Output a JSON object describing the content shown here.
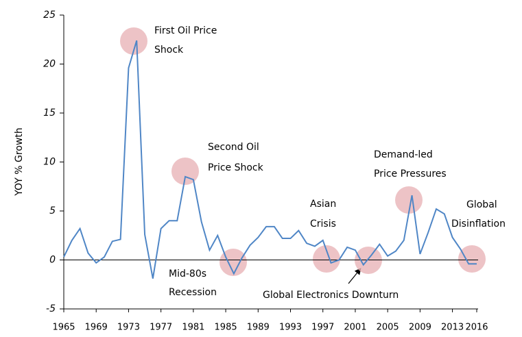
{
  "chart_data": {
    "type": "line",
    "y_label": "YOY % Growth",
    "x": [
      1965,
      1966,
      1967,
      1968,
      1969,
      1970,
      1971,
      1972,
      1973,
      1974,
      1975,
      1976,
      1977,
      1978,
      1979,
      1980,
      1981,
      1982,
      1983,
      1984,
      1985,
      1986,
      1987,
      1988,
      1989,
      1990,
      1991,
      1992,
      1993,
      1994,
      1995,
      1996,
      1997,
      1998,
      1999,
      2000,
      2001,
      2002,
      2003,
      2004,
      2005,
      2006,
      2007,
      2008,
      2009,
      2010,
      2011,
      2012,
      2013,
      2014,
      2015,
      2016
    ],
    "series": [
      {
        "color": "#4f86c6",
        "values": [
          0.3,
          2.0,
          3.2,
          0.7,
          -0.3,
          0.3,
          1.9,
          2.1,
          19.6,
          22.4,
          2.6,
          -1.9,
          3.2,
          4.0,
          4.0,
          8.5,
          8.2,
          3.9,
          1.0,
          2.5,
          0.3,
          -1.4,
          0.2,
          1.5,
          2.3,
          3.4,
          3.4,
          2.2,
          2.2,
          3.0,
          1.7,
          1.4,
          2.0,
          -0.3,
          0.0,
          1.3,
          1.0,
          -0.5,
          0.5,
          1.6,
          0.4,
          0.9,
          2.0,
          6.6,
          0.6,
          2.8,
          5.2,
          4.7,
          2.3,
          1.1,
          -0.4,
          -0.4
        ]
      }
    ],
    "xlim": [
      1965,
      2016
    ],
    "xticks": [
      1965,
      1969,
      1973,
      1977,
      1981,
      1985,
      1989,
      1993,
      1997,
      2001,
      2005,
      2009,
      2013,
      2016
    ],
    "ylim": [
      -5,
      25
    ],
    "yticks": [
      -5,
      0,
      5,
      10,
      15,
      20,
      25
    ],
    "grid": false,
    "annotations": [
      {
        "lines": [
          "First Oil Price",
          "Shock"
        ]
      },
      {
        "lines": [
          "Second Oil",
          "Price Shock"
        ]
      },
      {
        "lines": [
          "Mid-80s",
          "Recession"
        ]
      },
      {
        "lines": [
          "Asian",
          "Crisis"
        ]
      },
      {
        "lines": [
          "Global Electronics Downturn"
        ]
      },
      {
        "lines": [
          "Demand-led",
          "Price Pressures"
        ]
      },
      {
        "lines": [
          "Global",
          "Disinflation"
        ]
      }
    ]
  }
}
